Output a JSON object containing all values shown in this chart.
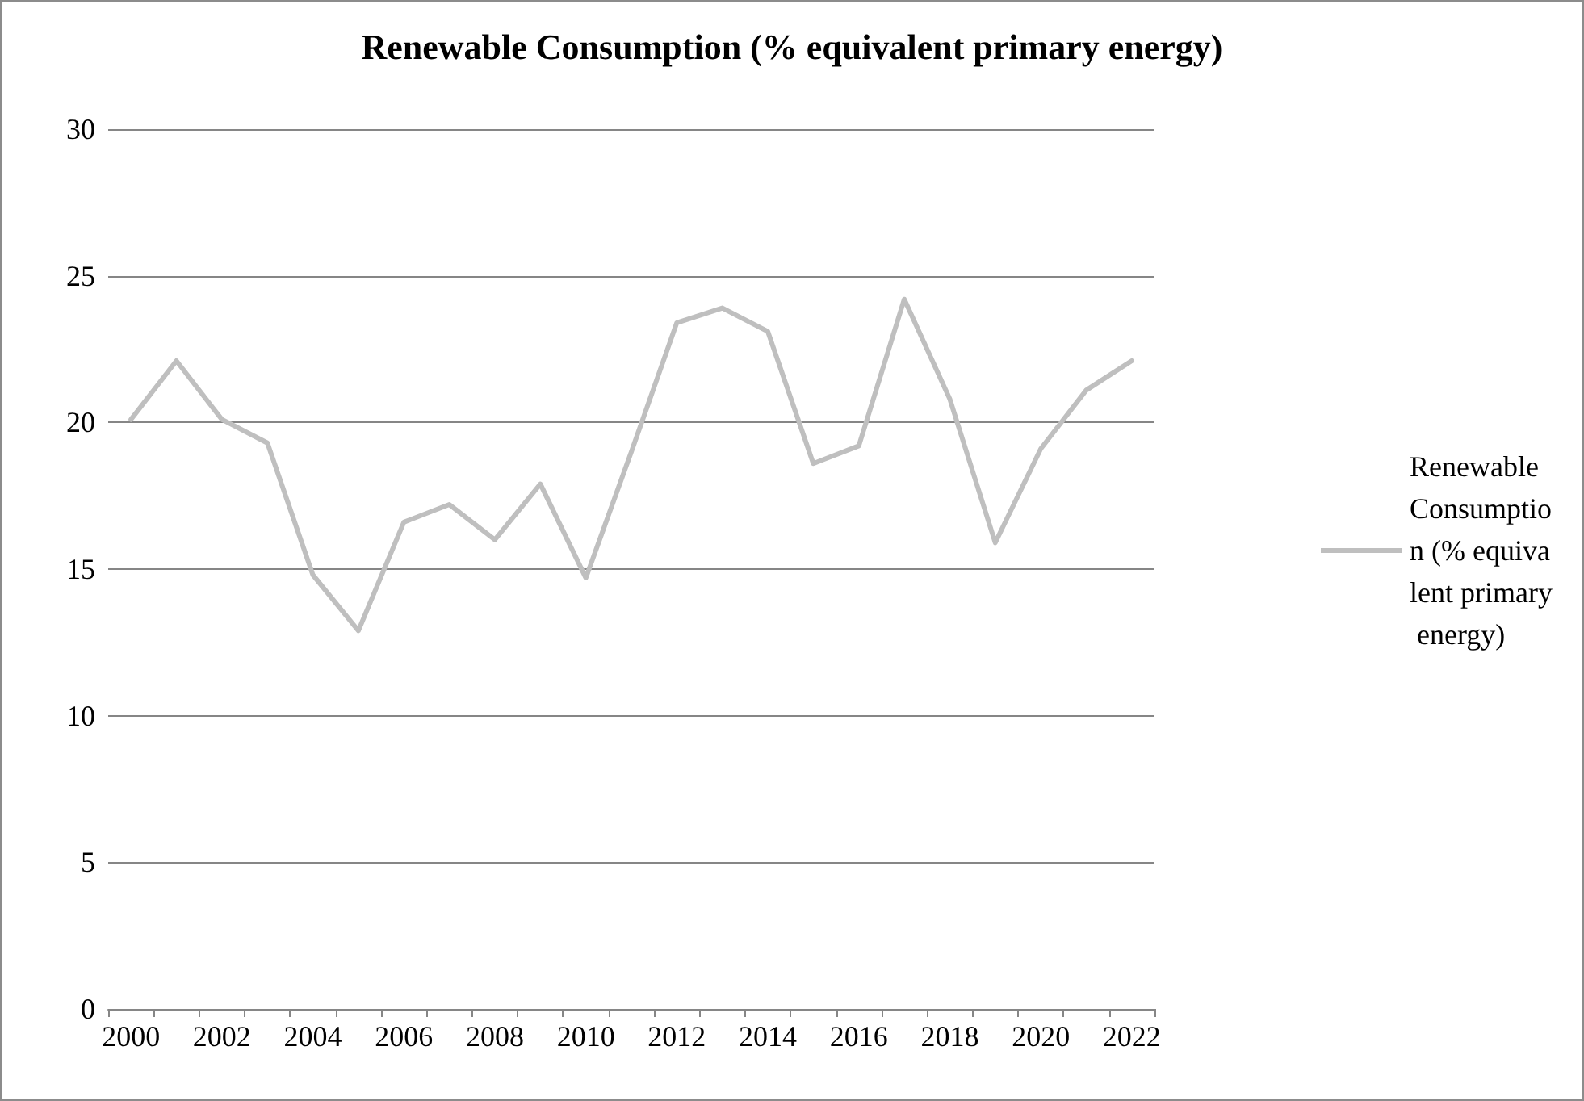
{
  "chart_data": {
    "type": "line",
    "title": "Renewable Consumption (% equivalent primary energy)",
    "categories": [
      "2000",
      null,
      "2002",
      null,
      "2004",
      null,
      "2006",
      null,
      "2008",
      null,
      "2010",
      null,
      "2012",
      null,
      "2014",
      null,
      "2016",
      null,
      "2018",
      null,
      "2020",
      null,
      "2022"
    ],
    "series": [
      {
        "name": "Renewable Consumption (% equivalent primary energy)",
        "color": "#bfbfbf",
        "values": [
          20.1,
          22.1,
          20.1,
          19.3,
          14.8,
          12.9,
          16.6,
          17.2,
          16.0,
          17.9,
          14.7,
          19.0,
          23.4,
          23.9,
          23.1,
          18.6,
          19.2,
          24.2,
          20.8,
          15.9,
          19.1,
          21.1,
          22.1
        ]
      }
    ],
    "ylim": [
      0,
      30
    ],
    "yticks": [
      0,
      5,
      10,
      15,
      20,
      25,
      30
    ],
    "grid": "y",
    "legend": "right",
    "marker": "none",
    "line_style": "solid"
  }
}
